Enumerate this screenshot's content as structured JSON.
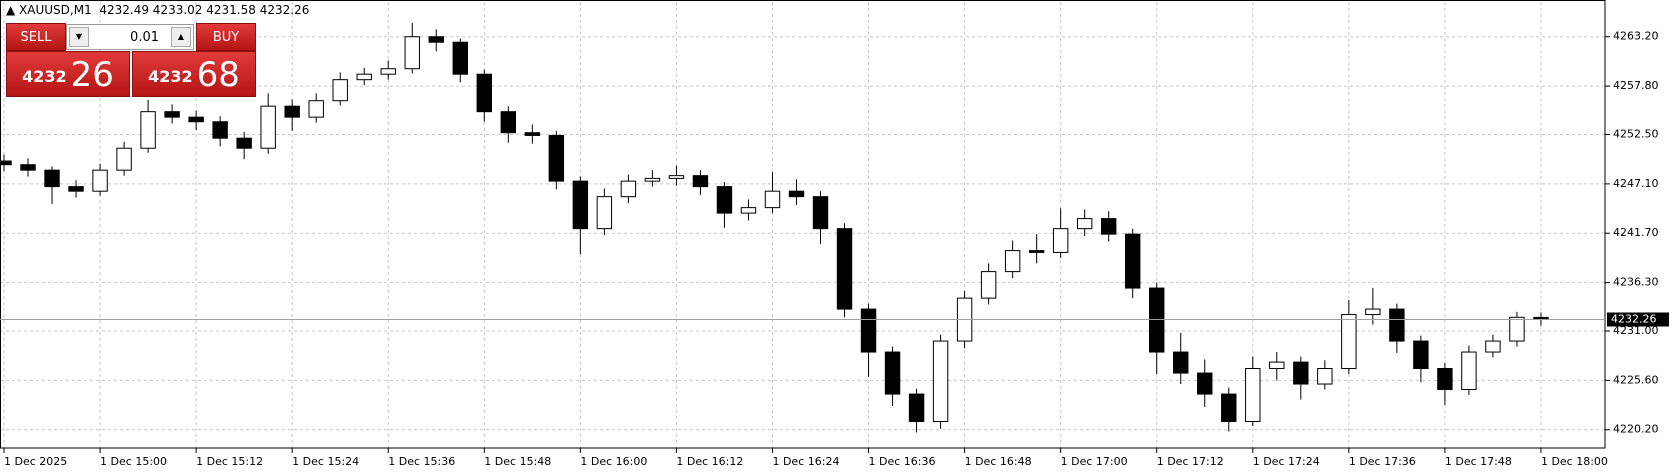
{
  "chart_data": {
    "type": "candlestick",
    "title": "XAUUSD,M1",
    "x": [
      "1 Dec 14:48",
      "1 Dec 14:51",
      "1 Dec 14:54",
      "1 Dec 14:57",
      "1 Dec 15:00",
      "1 Dec 15:03",
      "1 Dec 15:06",
      "1 Dec 15:09",
      "1 Dec 15:12",
      "1 Dec 15:15",
      "1 Dec 15:18",
      "1 Dec 15:21",
      "1 Dec 15:24",
      "1 Dec 15:27",
      "1 Dec 15:30",
      "1 Dec 15:33",
      "1 Dec 15:36",
      "1 Dec 15:39",
      "1 Dec 15:42",
      "1 Dec 15:45",
      "1 Dec 15:48",
      "1 Dec 15:51",
      "1 Dec 15:54",
      "1 Dec 15:57",
      "1 Dec 16:00",
      "1 Dec 16:03",
      "1 Dec 16:06",
      "1 Dec 16:09",
      "1 Dec 16:12",
      "1 Dec 16:15",
      "1 Dec 16:18",
      "1 Dec 16:21",
      "1 Dec 16:24",
      "1 Dec 16:27",
      "1 Dec 16:30",
      "1 Dec 16:33",
      "1 Dec 16:36",
      "1 Dec 16:39",
      "1 Dec 16:42",
      "1 Dec 16:45",
      "1 Dec 16:48",
      "1 Dec 16:51",
      "1 Dec 16:54",
      "1 Dec 16:57",
      "1 Dec 17:00",
      "1 Dec 17:03",
      "1 Dec 17:06",
      "1 Dec 17:09",
      "1 Dec 17:12",
      "1 Dec 17:15",
      "1 Dec 17:18",
      "1 Dec 17:21",
      "1 Dec 17:24",
      "1 Dec 17:27",
      "1 Dec 17:30",
      "1 Dec 17:33",
      "1 Dec 17:36",
      "1 Dec 17:39",
      "1 Dec 17:42",
      "1 Dec 17:45",
      "1 Dec 17:48",
      "1 Dec 17:51",
      "1 Dec 17:54",
      "1 Dec 17:57",
      "1 Dec 18:00"
    ],
    "open": [
      4249.6,
      4249.2,
      4248.6,
      4246.8,
      4246.3,
      4248.6,
      4251.0,
      4255.0,
      4254.4,
      4253.9,
      4252.1,
      4251.0,
      4255.6,
      4254.4,
      4256.2,
      4258.5,
      4259.1,
      4259.7,
      4263.2,
      4262.6,
      4259.1,
      4255.0,
      4252.7,
      4252.4,
      4247.4,
      4242.2,
      4245.7,
      4247.4,
      4247.7,
      4248.0,
      4246.8,
      4243.9,
      4244.5,
      4246.3,
      4245.7,
      4242.2,
      4233.4,
      4228.7,
      4224.1,
      4221.1,
      4229.9,
      4234.6,
      4237.5,
      4239.8,
      4239.6,
      4242.2,
      4243.3,
      4241.6,
      4235.7,
      4228.7,
      4226.4,
      4224.1,
      4221.1,
      4226.9,
      4227.6,
      4225.2,
      4226.9,
      4232.8,
      4233.4,
      4229.9,
      4226.9,
      4224.6,
      4228.7,
      4229.9,
      4232.49
    ],
    "high": [
      4250.3,
      4249.9,
      4249.0,
      4247.5,
      4249.3,
      4251.7,
      4256.3,
      4255.8,
      4255.1,
      4254.5,
      4252.8,
      4257.0,
      4256.3,
      4257.0,
      4259.3,
      4259.8,
      4260.6,
      4264.7,
      4264.0,
      4263.0,
      4259.6,
      4255.6,
      4253.6,
      4252.9,
      4247.9,
      4246.6,
      4248.1,
      4248.6,
      4249.1,
      4248.6,
      4247.3,
      4245.4,
      4248.4,
      4247.6,
      4246.3,
      4242.8,
      4234.0,
      4229.3,
      4224.7,
      4230.6,
      4235.4,
      4238.4,
      4240.9,
      4241.6,
      4244.4,
      4244.3,
      4244.1,
      4242.2,
      4236.3,
      4230.8,
      4227.9,
      4224.8,
      4228.2,
      4228.7,
      4228.2,
      4227.8,
      4234.4,
      4235.7,
      4234.0,
      4230.5,
      4227.5,
      4229.4,
      4230.6,
      4233.1,
      4233.02
    ],
    "low": [
      4248.5,
      4247.9,
      4244.9,
      4245.6,
      4245.8,
      4248.0,
      4250.5,
      4253.7,
      4253.0,
      4251.2,
      4249.8,
      4250.4,
      4252.9,
      4253.8,
      4255.7,
      4257.9,
      4258.5,
      4259.2,
      4261.6,
      4258.2,
      4253.9,
      4251.6,
      4251.5,
      4246.5,
      4239.4,
      4241.5,
      4245.0,
      4246.8,
      4246.9,
      4245.9,
      4242.3,
      4243.1,
      4243.9,
      4244.8,
      4240.5,
      4232.5,
      4226.0,
      4222.8,
      4219.9,
      4220.3,
      4229.1,
      4233.9,
      4236.8,
      4238.4,
      4239.0,
      4241.4,
      4240.8,
      4234.6,
      4226.3,
      4225.2,
      4222.7,
      4220.0,
      4220.6,
      4225.6,
      4223.5,
      4224.6,
      4226.3,
      4231.7,
      4228.6,
      4225.4,
      4222.9,
      4224.0,
      4228.1,
      4229.3,
      4231.58
    ],
    "close": [
      4249.2,
      4248.6,
      4246.8,
      4246.3,
      4248.6,
      4251.0,
      4255.0,
      4254.4,
      4253.9,
      4252.1,
      4251.0,
      4255.6,
      4254.4,
      4256.2,
      4258.5,
      4259.1,
      4259.7,
      4263.2,
      4262.6,
      4259.1,
      4255.0,
      4252.7,
      4252.4,
      4247.4,
      4242.2,
      4245.7,
      4247.4,
      4247.7,
      4248.0,
      4246.8,
      4243.9,
      4244.5,
      4246.3,
      4245.7,
      4242.2,
      4233.4,
      4228.7,
      4224.1,
      4221.1,
      4229.9,
      4234.6,
      4237.5,
      4239.8,
      4239.6,
      4242.2,
      4243.3,
      4241.6,
      4235.7,
      4228.7,
      4226.4,
      4224.1,
      4221.1,
      4226.9,
      4227.6,
      4225.2,
      4226.9,
      4232.8,
      4233.4,
      4229.9,
      4226.9,
      4224.6,
      4228.7,
      4229.9,
      4232.5,
      4232.26
    ],
    "up_color": "#ffffff",
    "down_color": "#000000",
    "outline_color": "#000000",
    "xlim": [
      "1 Dec 14:48",
      "1 Dec 18:08"
    ],
    "xticks": [
      {
        "value": "1 Dec 14:48",
        "label": "1 Dec 2025"
      },
      "1 Dec 15:00",
      "1 Dec 15:12",
      "1 Dec 15:24",
      "1 Dec 15:36",
      "1 Dec 15:48",
      "1 Dec 16:00",
      "1 Dec 16:12",
      "1 Dec 16:24",
      "1 Dec 16:36",
      "1 Dec 16:48",
      "1 Dec 17:00",
      "1 Dec 17:12",
      "1 Dec 17:24",
      "1 Dec 17:36",
      "1 Dec 17:48",
      "1 Dec 18:00"
    ],
    "ylim": [
      4218.2,
      4267.0
    ],
    "yticks": [
      {
        "value": 4220.2,
        "label": "4220.20"
      },
      {
        "value": 4225.6,
        "label": "4225.60"
      },
      {
        "value": 4231.0,
        "label": "4231.00"
      },
      {
        "value": 4236.3,
        "label": "4236.30"
      },
      {
        "value": 4241.7,
        "label": "4241.70"
      },
      {
        "value": 4247.1,
        "label": "4247.10"
      },
      {
        "value": 4252.5,
        "label": "4252.50"
      },
      {
        "value": 4257.8,
        "label": "4257.80"
      },
      {
        "value": 4263.2,
        "label": "4263.20"
      }
    ],
    "grid": true,
    "last_price": 4232.26
  },
  "trade_panel": {
    "sell": "SELL",
    "buy": "BUY",
    "volume": "0.01",
    "sell_big": "4232",
    "sell_small": "26",
    "buy_big": "4232",
    "buy_small": "68"
  }
}
